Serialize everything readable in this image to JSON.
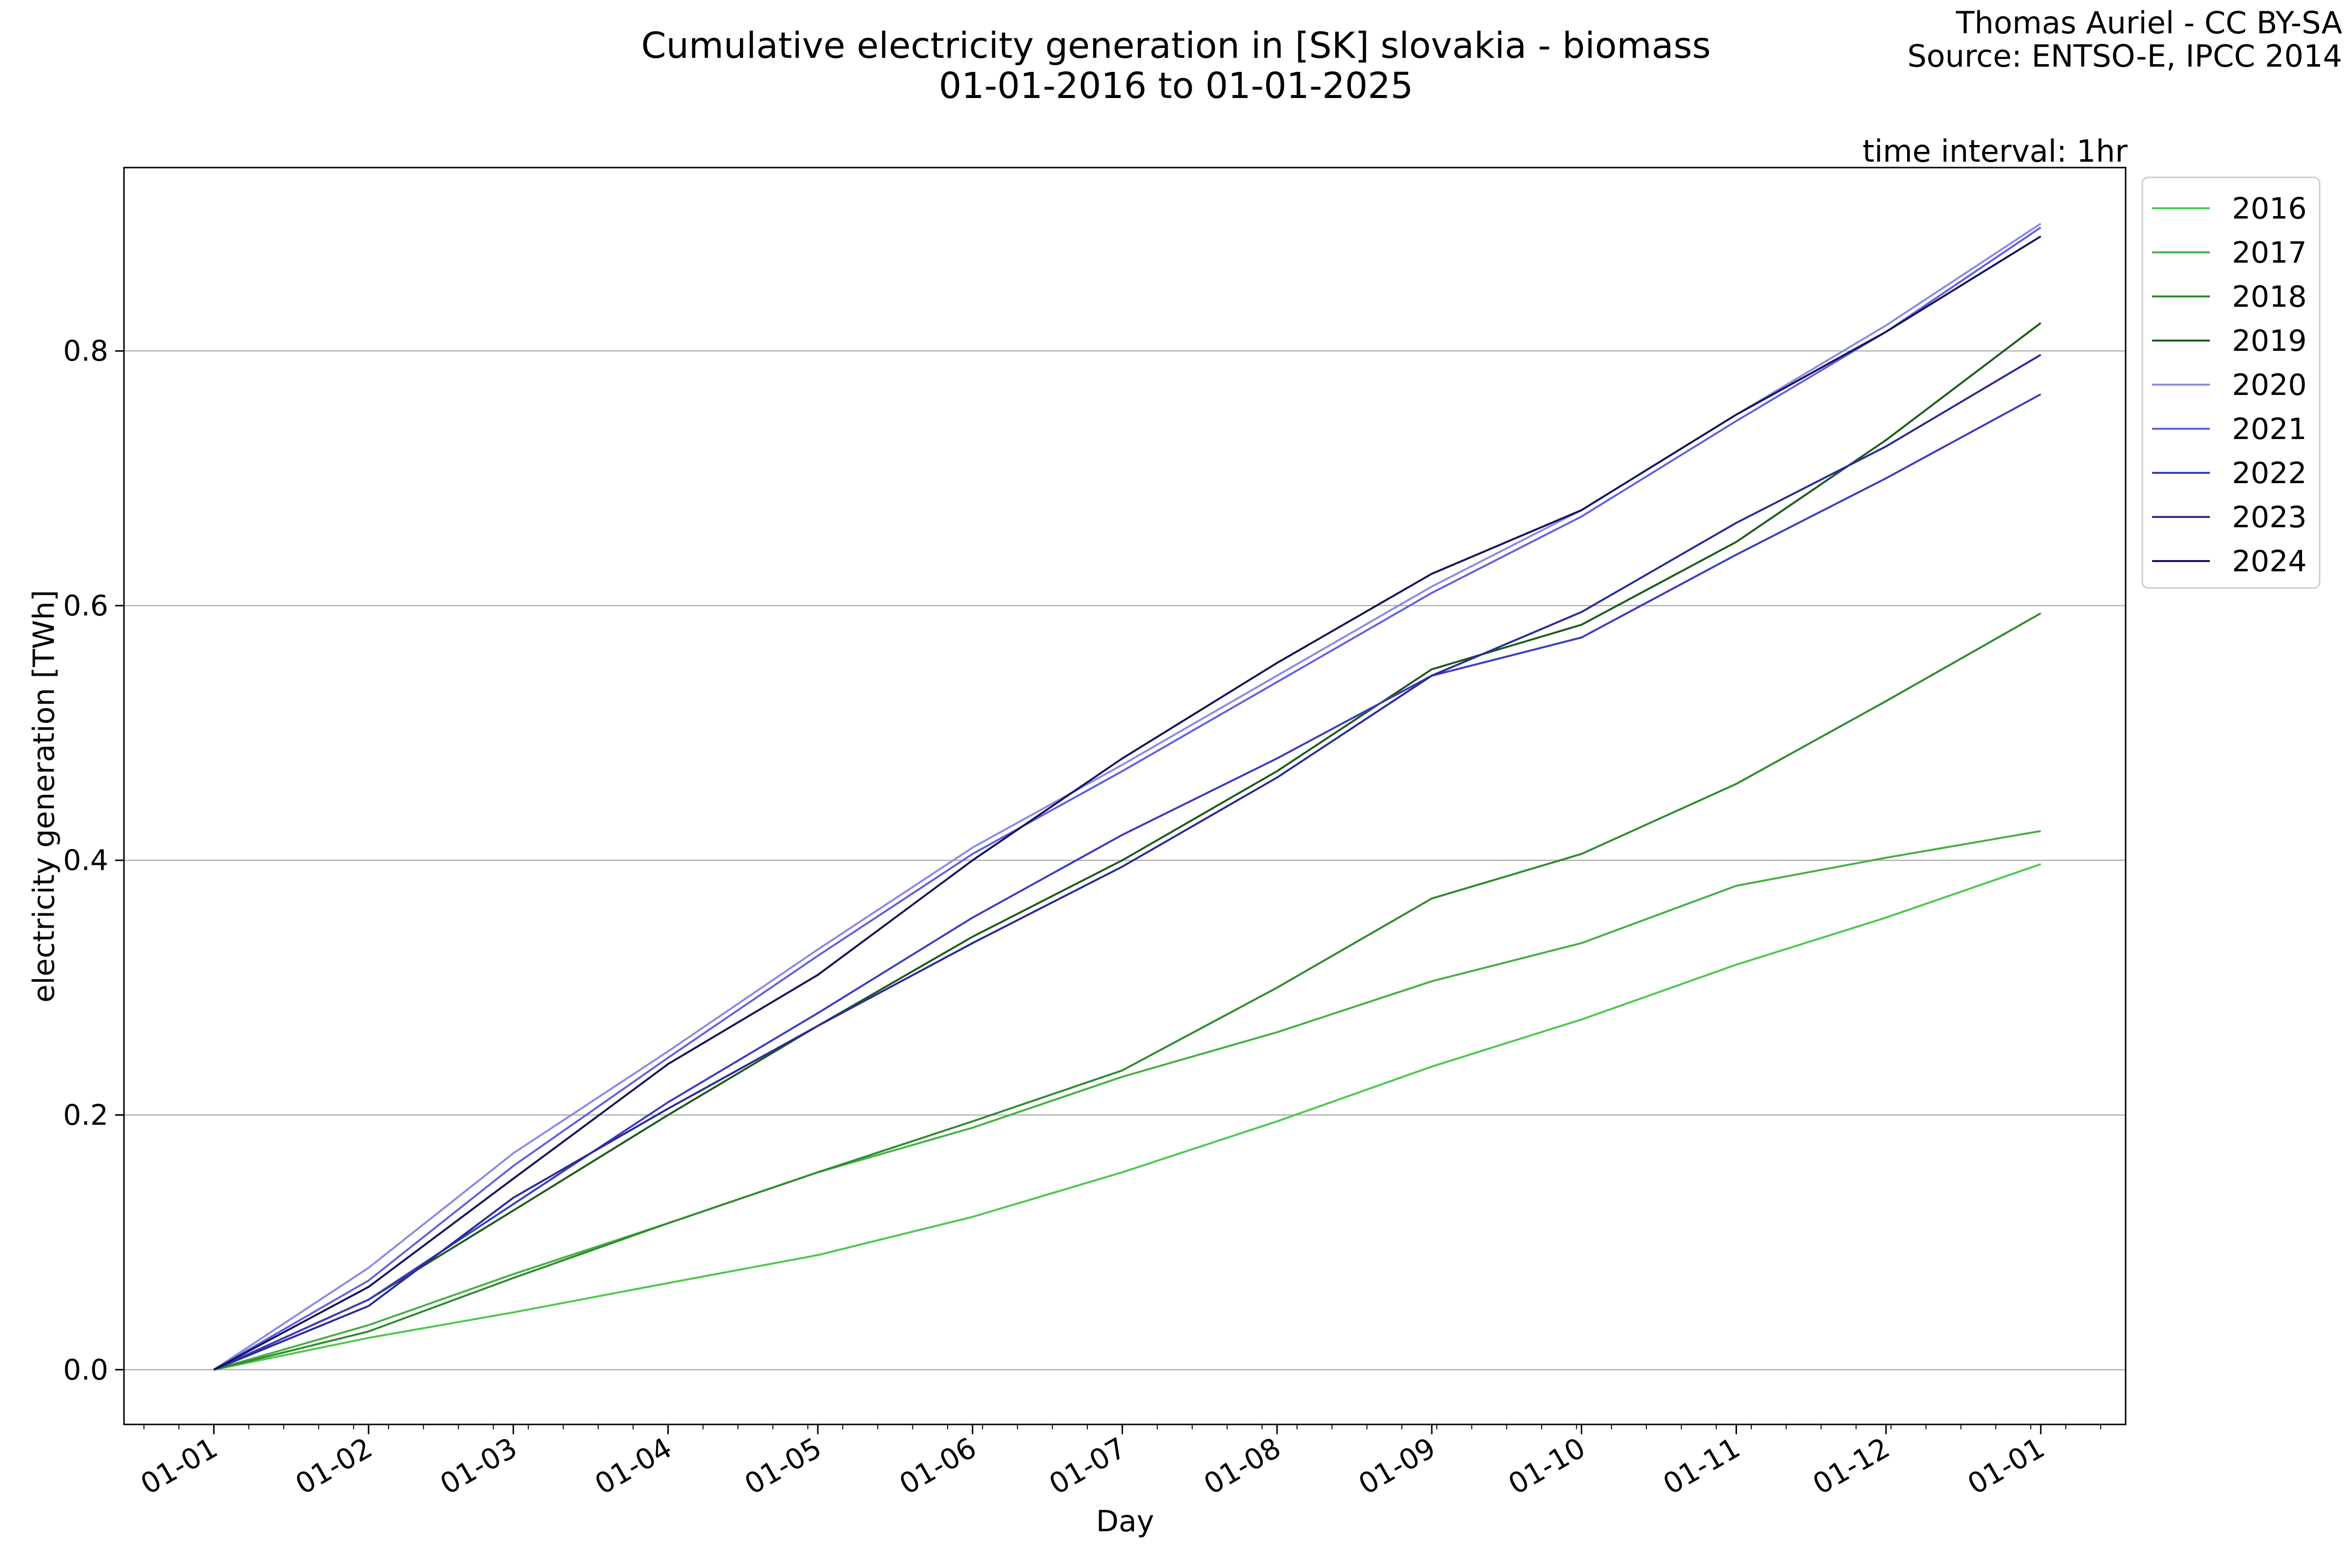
{
  "header": {
    "title_line1": "Cumulative electricity generation in [SK] slovakia - biomass",
    "title_line2": "01-01-2016 to 01-01-2025",
    "credit_line1": "Thomas Auriel - CC BY-SA",
    "credit_line2": "Source: ENTSO-E, IPCC 2014",
    "interval": "time interval: 1hr"
  },
  "chart_data": {
    "type": "line",
    "title": "Cumulative electricity generation in [SK] slovakia - biomass",
    "subtitle": "01-01-2016 to 01-01-2025",
    "xlabel": "Day",
    "ylabel": "electricity generation [TWh]",
    "x_ticks": [
      "01-01",
      "01-02",
      "01-03",
      "01-04",
      "01-05",
      "01-06",
      "01-07",
      "01-08",
      "01-09",
      "01-10",
      "01-11",
      "01-12",
      "01-01"
    ],
    "y_ticks": [
      "0.0",
      "0.2",
      "0.4",
      "0.6",
      "0.8"
    ],
    "y_tick_values": [
      0.0,
      0.2,
      0.4,
      0.6,
      0.8
    ],
    "ylim": [
      -0.043,
      0.944
    ],
    "xlim": [
      -18,
      383
    ],
    "grid": "horizontal",
    "legend_position": "outside-right",
    "x": [
      0,
      31,
      60,
      91,
      121,
      152,
      182,
      213,
      244,
      274,
      305,
      335,
      366
    ],
    "series": [
      {
        "name": "2016",
        "color": "#4cc94c",
        "values": [
          0.0,
          0.025,
          0.045,
          0.068,
          0.09,
          0.12,
          0.155,
          0.195,
          0.238,
          0.275,
          0.318,
          0.355,
          0.397
        ]
      },
      {
        "name": "2017",
        "color": "#44b044",
        "values": [
          0.0,
          0.035,
          0.075,
          0.115,
          0.155,
          0.19,
          0.23,
          0.265,
          0.305,
          0.335,
          0.38,
          0.402,
          0.423
        ]
      },
      {
        "name": "2018",
        "color": "#2e8b2e",
        "values": [
          0.0,
          0.03,
          0.072,
          0.115,
          0.155,
          0.195,
          0.235,
          0.3,
          0.37,
          0.405,
          0.46,
          0.525,
          0.594
        ]
      },
      {
        "name": "2019",
        "color": "#1e5a1e",
        "values": [
          0.0,
          0.055,
          0.125,
          0.2,
          0.27,
          0.34,
          0.4,
          0.47,
          0.55,
          0.585,
          0.65,
          0.73,
          0.822
        ]
      },
      {
        "name": "2020",
        "color": "#8a8ae6",
        "values": [
          0.0,
          0.08,
          0.17,
          0.25,
          0.33,
          0.41,
          0.475,
          0.545,
          0.615,
          0.675,
          0.75,
          0.82,
          0.9
        ]
      },
      {
        "name": "2021",
        "color": "#6060e0",
        "values": [
          0.0,
          0.07,
          0.16,
          0.245,
          0.325,
          0.405,
          0.47,
          0.54,
          0.61,
          0.67,
          0.745,
          0.815,
          0.897
        ]
      },
      {
        "name": "2022",
        "color": "#3c3cc0",
        "values": [
          0.0,
          0.055,
          0.13,
          0.21,
          0.28,
          0.355,
          0.42,
          0.48,
          0.545,
          0.575,
          0.64,
          0.7,
          0.766
        ]
      },
      {
        "name": "2023",
        "color": "#2a2a9a",
        "values": [
          0.0,
          0.05,
          0.135,
          0.205,
          0.27,
          0.335,
          0.395,
          0.465,
          0.545,
          0.595,
          0.665,
          0.725,
          0.797
        ]
      },
      {
        "name": "2024",
        "color": "#14145a",
        "values": [
          0.0,
          0.065,
          0.15,
          0.24,
          0.31,
          0.4,
          0.48,
          0.555,
          0.625,
          0.675,
          0.75,
          0.815,
          0.89
        ]
      }
    ]
  }
}
